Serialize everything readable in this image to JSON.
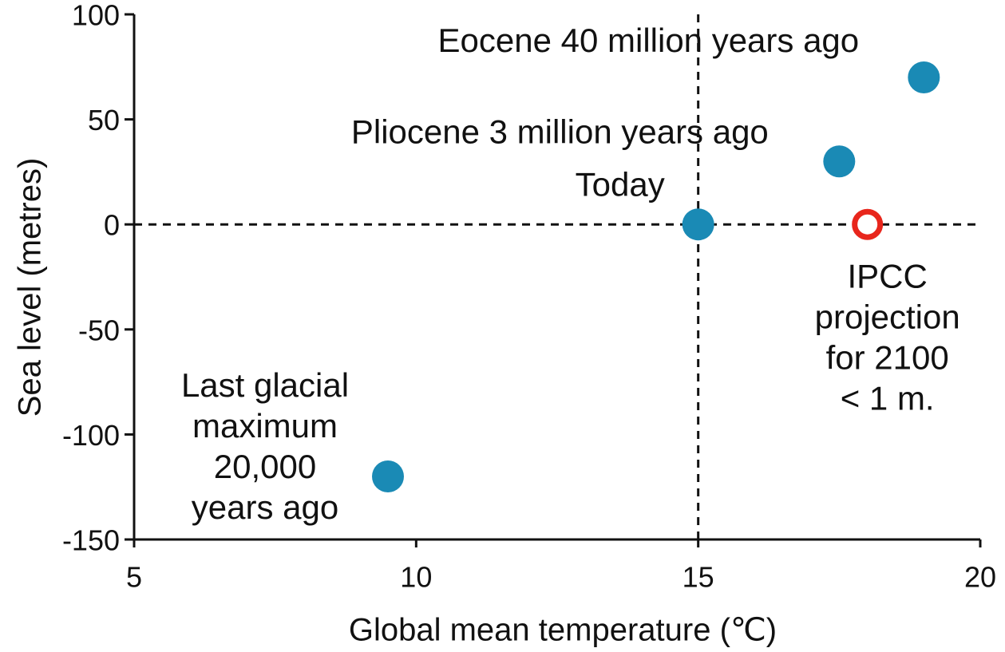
{
  "chart_data": {
    "type": "scatter",
    "x_label": "Global mean temperature (℃)",
    "y_label": "Sea level (metres)",
    "xlim": [
      5,
      20
    ],
    "ylim": [
      -150,
      100
    ],
    "xticks": [
      5,
      10,
      15,
      20
    ],
    "yticks": [
      100,
      50,
      0,
      -50,
      -100,
      -150
    ],
    "reference_x": 15,
    "reference_y": 0,
    "series": [
      {
        "color": "#1a8ab5",
        "filled": true,
        "x": [
          19,
          17.5,
          15,
          9.5
        ],
        "values": [
          70,
          30,
          0,
          -120
        ],
        "labels": [
          [
            "Eocene 40 million years ago"
          ],
          [
            "Pliocene 3 million years ago"
          ],
          [
            "Today"
          ],
          [
            "Last glacial",
            "maximum",
            "20,000",
            "years ago"
          ]
        ]
      },
      {
        "color": "#e8261c",
        "filled": false,
        "x": [
          18
        ],
        "values": [
          0
        ],
        "labels": [
          [
            "IPCC",
            "projection",
            "for 2100",
            "< 1 m."
          ]
        ]
      }
    ]
  }
}
